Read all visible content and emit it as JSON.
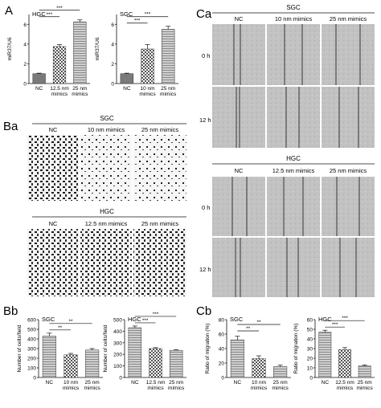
{
  "panels": {
    "A": "A",
    "Ba": "Ba",
    "Bb": "Bb",
    "Ca": "Ca",
    "Cb": "Cb"
  },
  "colors": {
    "bar_dark": "#777777",
    "bar_mid": "#aaaaaa",
    "bar_light": "#c8c8c8",
    "transwell_bg": "#e6e6e6",
    "scratch_bg": "#bdbdbd",
    "scratch_line": "#111111"
  },
  "ba": {
    "sgc": {
      "group": "SGC",
      "cols": [
        "NC",
        "10 nm mimics",
        "25 nm mimics"
      ]
    },
    "hgc": {
      "group": "HGC",
      "cols": [
        "NC",
        "12.5 nm mimics",
        "25 nm mimics"
      ]
    }
  },
  "ca": {
    "sgc": {
      "group": "SGC",
      "cols": [
        "NC",
        "10 nm mimics",
        "25 nm mimics"
      ],
      "rows": [
        "0 h",
        "12 h"
      ]
    },
    "hgc": {
      "group": "HGC",
      "cols": [
        "NC",
        "12.5 nm mimics",
        "25 nm mimics"
      ],
      "rows": [
        "0 h",
        "12 h"
      ]
    }
  },
  "chart_data": [
    {
      "id": "A-HGC",
      "type": "bar",
      "group_label": "HGC",
      "ylabel": "miR37/U6",
      "ylim": [
        0,
        7
      ],
      "yticks": [
        0,
        2,
        4,
        6
      ],
      "categories": [
        [
          "NC"
        ],
        [
          "12.5 nm",
          "mimics"
        ],
        [
          "25 nm",
          "mimics"
        ]
      ],
      "values": [
        1.0,
        3.75,
        6.25
      ],
      "errors": [
        0.05,
        0.2,
        0.2
      ],
      "fills": [
        "solid",
        "checker",
        "hstripe"
      ],
      "significance": [
        {
          "from": 0,
          "to": 1,
          "label": "***"
        },
        {
          "from": 0,
          "to": 2,
          "label": "***"
        }
      ]
    },
    {
      "id": "A-SGC",
      "type": "bar",
      "group_label": "SGC",
      "ylabel": "miR37/U6",
      "ylim": [
        0,
        7
      ],
      "yticks": [
        0,
        2,
        4,
        6
      ],
      "categories": [
        [
          "NC"
        ],
        [
          "10 nm",
          "mimics"
        ],
        [
          "25 nm",
          "mimics"
        ]
      ],
      "values": [
        1.0,
        3.5,
        5.5
      ],
      "errors": [
        0.05,
        0.45,
        0.3
      ],
      "fills": [
        "solid",
        "checker",
        "hstripe"
      ],
      "significance": [
        {
          "from": 0,
          "to": 1,
          "label": "***"
        },
        {
          "from": 0,
          "to": 2,
          "label": "***"
        }
      ]
    },
    {
      "id": "Bb-SGC",
      "type": "bar",
      "group_label": "SGC",
      "ylabel": "Number of cells/field",
      "ylim": [
        0,
        600
      ],
      "yticks": [
        0,
        100,
        200,
        300,
        400,
        500,
        600
      ],
      "categories": [
        [
          "NC"
        ],
        [
          "10 nm",
          "mimics"
        ],
        [
          "25 nm",
          "mimics"
        ]
      ],
      "values": [
        430,
        235,
        285
      ],
      "errors": [
        30,
        15,
        15
      ],
      "fills": [
        "hstripe",
        "checker",
        "hstripe"
      ],
      "significance": [
        {
          "from": 0,
          "to": 1,
          "label": "**"
        },
        {
          "from": 0,
          "to": 2,
          "label": "**"
        }
      ]
    },
    {
      "id": "Bb-HGC",
      "type": "bar",
      "group_label": "HGC",
      "ylabel": "Number of cells/field",
      "ylim": [
        0,
        500
      ],
      "yticks": [
        0,
        100,
        200,
        300,
        400,
        500
      ],
      "categories": [
        [
          "NC"
        ],
        [
          "12.5 nm",
          "mimics"
        ],
        [
          "25 nm",
          "mimics"
        ]
      ],
      "values": [
        430,
        250,
        235
      ],
      "errors": [
        15,
        8,
        5
      ],
      "fills": [
        "hstripe",
        "checker",
        "hstripe"
      ],
      "significance": [
        {
          "from": 0,
          "to": 1,
          "label": "***"
        },
        {
          "from": 0,
          "to": 2,
          "label": "***"
        }
      ]
    },
    {
      "id": "Cb-SGC",
      "type": "bar",
      "group_label": "SGC",
      "ylabel": "Ratio of migration (%)",
      "ylim": [
        0,
        80
      ],
      "yticks": [
        0,
        20,
        40,
        60,
        80
      ],
      "categories": [
        [
          "NC"
        ],
        [
          "10 nm",
          "mimics"
        ],
        [
          "25 nm",
          "mimics"
        ]
      ],
      "values": [
        52,
        26,
        15
      ],
      "errors": [
        5,
        4,
        2
      ],
      "fills": [
        "hstripe",
        "checker",
        "hstripe"
      ],
      "significance": [
        {
          "from": 0,
          "to": 1,
          "label": "**"
        },
        {
          "from": 0,
          "to": 2,
          "label": "**"
        }
      ]
    },
    {
      "id": "Cb-HGC",
      "type": "bar",
      "group_label": "HGC",
      "ylabel": "Ratio of migration (%)",
      "ylim": [
        0,
        60
      ],
      "yticks": [
        0,
        10,
        20,
        30,
        40,
        50,
        60
      ],
      "categories": [
        [
          "NC"
        ],
        [
          "12.5 nm",
          "mimics"
        ],
        [
          "25 nm",
          "mimics"
        ]
      ],
      "values": [
        47,
        29,
        12
      ],
      "errors": [
        2,
        2,
        1
      ],
      "fills": [
        "hstripe",
        "checker",
        "hstripe"
      ],
      "significance": [
        {
          "from": 0,
          "to": 1,
          "label": "***"
        },
        {
          "from": 0,
          "to": 2,
          "label": "***"
        }
      ]
    }
  ]
}
